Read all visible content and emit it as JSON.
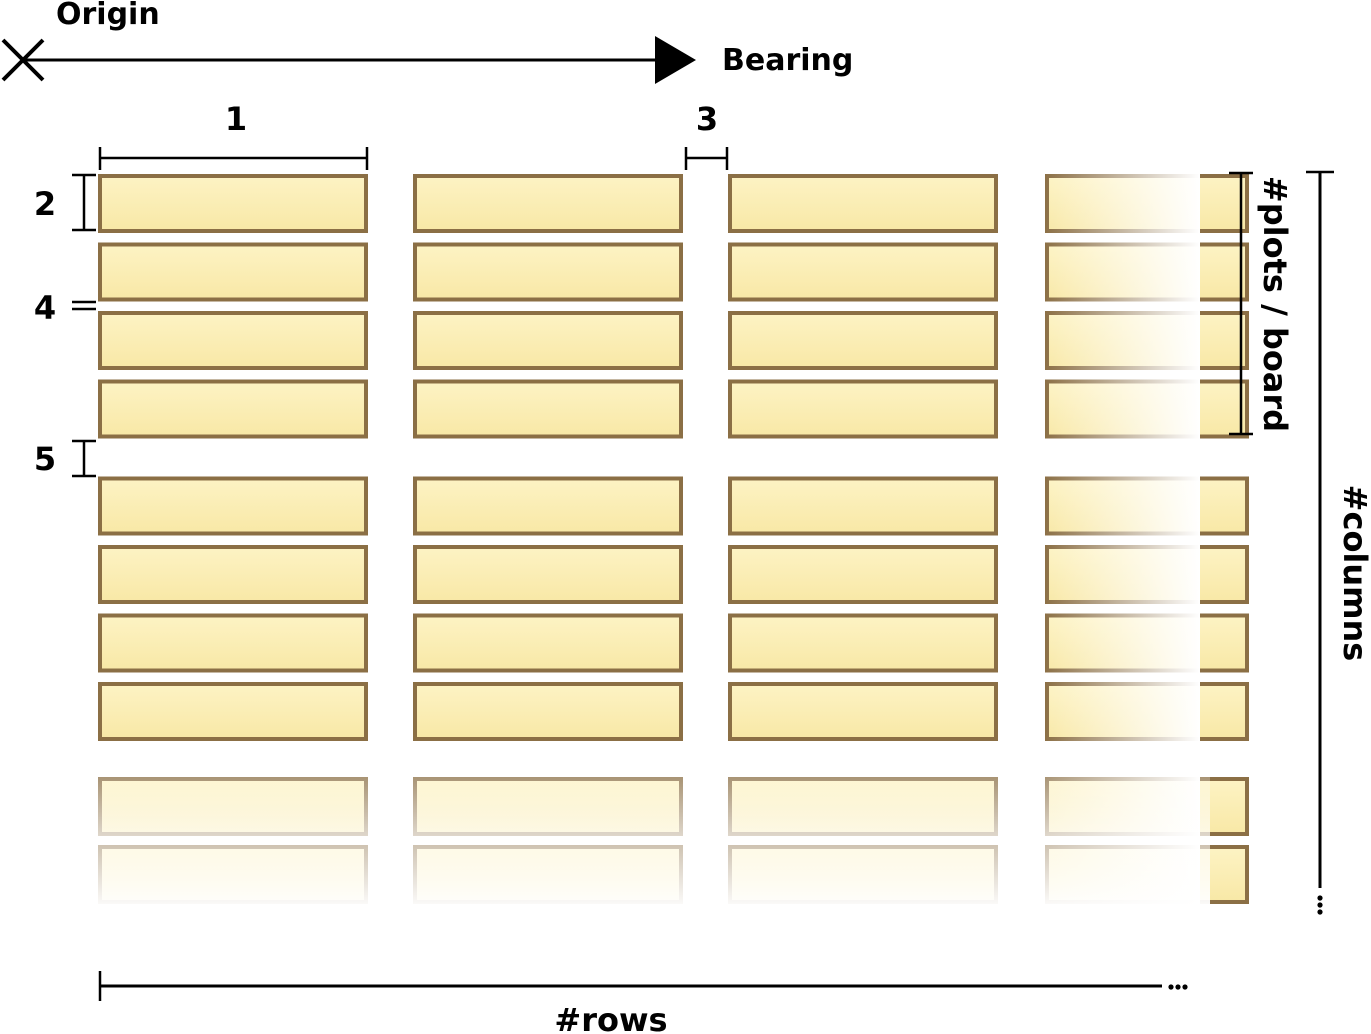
{
  "labels": {
    "origin": "Origin",
    "bearing": "Bearing",
    "dim_1": "1",
    "dim_2": "2",
    "dim_3": "3",
    "dim_4": "4",
    "dim_5": "5",
    "plots_per_board": "#plots / board",
    "columns": "#columns",
    "rows": "#rows"
  },
  "colors": {
    "plot_fill_top": "#fdf3c4",
    "plot_fill_bottom": "#f8e8a6",
    "plot_stroke": "#8b6f45",
    "ink": "#000000"
  },
  "layout_grid": {
    "visible_rows": 4,
    "plots_per_board": 4,
    "full_boards": 2,
    "faded_plots_after_boards": 2
  }
}
